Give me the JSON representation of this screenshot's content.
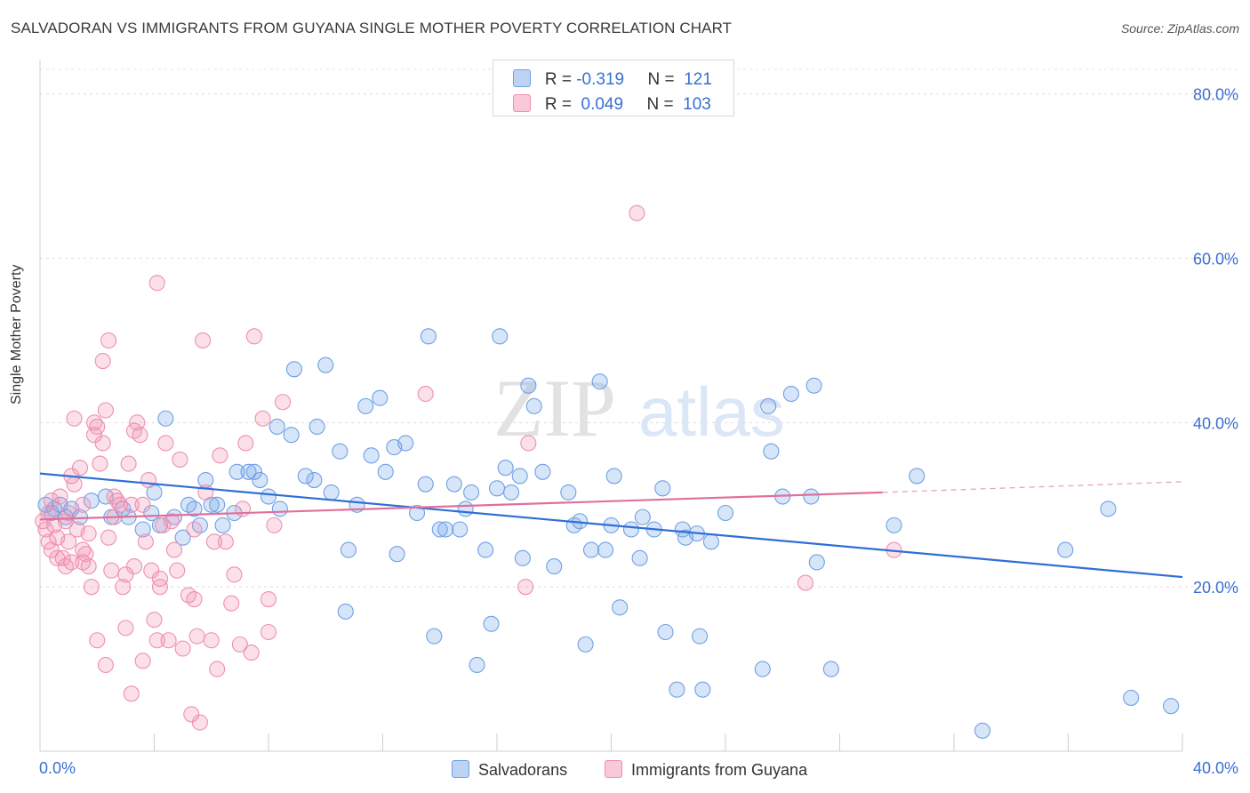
{
  "title": "SALVADORAN VS IMMIGRANTS FROM GUYANA SINGLE MOTHER POVERTY CORRELATION CHART",
  "source": "Source: ZipAtlas.com",
  "watermark": {
    "zip": "ZIP",
    "atlas": "atlas"
  },
  "legend": {
    "rows": [
      {
        "r_label": "R =",
        "r_value": "-0.319",
        "n_label": "N =",
        "n_value": "121",
        "color": "#6fa0e6"
      },
      {
        "r_label": "R =",
        "r_value": "0.049",
        "n_label": "N =",
        "n_value": "103",
        "color": "#ef8fb0"
      }
    ]
  },
  "bottom_legend": [
    {
      "label": "Salvadorans",
      "color": "#6fa0e6"
    },
    {
      "label": "Immigrants from Guyana",
      "color": "#ef8fb0"
    }
  ],
  "chart_data": {
    "type": "scatter",
    "title": "SALVADORAN VS IMMIGRANTS FROM GUYANA SINGLE MOTHER POVERTY CORRELATION CHART",
    "xlabel": "",
    "ylabel": "Single Mother Poverty",
    "xlim": [
      0,
      40
    ],
    "ylim": [
      0,
      83
    ],
    "x_tick_labels": [
      {
        "value": 0,
        "label": "0.0%"
      },
      {
        "value": 40,
        "label": "40.0%"
      }
    ],
    "y_tick_labels": [
      {
        "value": 20,
        "label": "20.0%"
      },
      {
        "value": 40,
        "label": "40.0%"
      },
      {
        "value": 60,
        "label": "60.0%"
      },
      {
        "value": 80,
        "label": "80.0%"
      }
    ],
    "grid": true,
    "legend_position": "top-center",
    "series": [
      {
        "name": "Salvadorans",
        "color": "#6fa0e6",
        "trend": {
          "x": [
            0,
            40
          ],
          "y": [
            33.8,
            21.2
          ],
          "dashed_from": null
        },
        "points": [
          [
            0.2,
            30
          ],
          [
            0.4,
            29
          ],
          [
            0.5,
            29.5
          ],
          [
            0.7,
            30
          ],
          [
            0.9,
            28.5
          ],
          [
            1.1,
            29.5
          ],
          [
            1.4,
            28.5
          ],
          [
            1.8,
            30.5
          ],
          [
            2.3,
            31
          ],
          [
            2.5,
            28.5
          ],
          [
            2.9,
            29.5
          ],
          [
            3.1,
            28.5
          ],
          [
            3.6,
            27
          ],
          [
            3.9,
            29
          ],
          [
            4.0,
            31.5
          ],
          [
            4.2,
            27.5
          ],
          [
            4.4,
            40.5
          ],
          [
            4.7,
            28.5
          ],
          [
            5.0,
            26
          ],
          [
            5.2,
            30
          ],
          [
            5.4,
            29.5
          ],
          [
            5.6,
            27.5
          ],
          [
            5.8,
            33
          ],
          [
            6.0,
            30
          ],
          [
            6.2,
            30
          ],
          [
            6.4,
            27.5
          ],
          [
            6.8,
            29
          ],
          [
            6.9,
            34
          ],
          [
            7.3,
            34
          ],
          [
            7.5,
            34
          ],
          [
            7.7,
            33
          ],
          [
            8.0,
            31
          ],
          [
            8.3,
            39.5
          ],
          [
            8.4,
            29.5
          ],
          [
            8.8,
            38.5
          ],
          [
            8.9,
            46.5
          ],
          [
            9.3,
            33.5
          ],
          [
            9.6,
            33
          ],
          [
            9.7,
            39.5
          ],
          [
            10.0,
            47
          ],
          [
            10.2,
            31.5
          ],
          [
            10.5,
            36.5
          ],
          [
            10.7,
            17
          ],
          [
            10.8,
            24.5
          ],
          [
            11.1,
            30
          ],
          [
            11.4,
            42
          ],
          [
            11.6,
            36
          ],
          [
            11.9,
            43
          ],
          [
            12.1,
            34
          ],
          [
            12.4,
            37
          ],
          [
            12.5,
            24
          ],
          [
            12.8,
            37.5
          ],
          [
            13.2,
            29
          ],
          [
            13.5,
            32.5
          ],
          [
            13.6,
            50.5
          ],
          [
            13.8,
            14
          ],
          [
            14.0,
            27
          ],
          [
            14.2,
            27
          ],
          [
            14.5,
            32.5
          ],
          [
            14.7,
            27
          ],
          [
            14.9,
            29.5
          ],
          [
            15.1,
            31.5
          ],
          [
            15.3,
            10.5
          ],
          [
            15.6,
            24.5
          ],
          [
            15.8,
            15.5
          ],
          [
            16.0,
            32
          ],
          [
            16.1,
            50.5
          ],
          [
            16.3,
            34.5
          ],
          [
            16.5,
            31.5
          ],
          [
            16.8,
            33.5
          ],
          [
            16.9,
            23.5
          ],
          [
            17.1,
            44.5
          ],
          [
            17.3,
            42
          ],
          [
            17.6,
            34
          ],
          [
            18.0,
            22.5
          ],
          [
            18.5,
            31.5
          ],
          [
            18.7,
            27.5
          ],
          [
            18.9,
            28
          ],
          [
            19.1,
            13
          ],
          [
            19.3,
            24.5
          ],
          [
            19.6,
            45
          ],
          [
            19.8,
            24.5
          ],
          [
            20.0,
            27.5
          ],
          [
            20.1,
            33.5
          ],
          [
            20.3,
            17.5
          ],
          [
            20.7,
            27
          ],
          [
            21.0,
            23.5
          ],
          [
            21.1,
            28.5
          ],
          [
            21.5,
            27
          ],
          [
            21.8,
            32
          ],
          [
            21.9,
            14.5
          ],
          [
            22.3,
            7.5
          ],
          [
            22.5,
            27
          ],
          [
            22.6,
            26
          ],
          [
            23.0,
            26.5
          ],
          [
            23.1,
            14
          ],
          [
            23.2,
            7.5
          ],
          [
            23.5,
            25.5
          ],
          [
            24.0,
            29
          ],
          [
            25.3,
            10
          ],
          [
            25.5,
            42
          ],
          [
            25.6,
            36.5
          ],
          [
            26.0,
            31
          ],
          [
            26.3,
            43.5
          ],
          [
            27.0,
            31
          ],
          [
            27.1,
            44.5
          ],
          [
            27.2,
            23
          ],
          [
            27.7,
            10
          ],
          [
            29.9,
            27.5
          ],
          [
            30.7,
            33.5
          ],
          [
            33.0,
            2.5
          ],
          [
            35.9,
            24.5
          ],
          [
            37.4,
            29.5
          ],
          [
            38.2,
            6.5
          ],
          [
            39.6,
            5.5
          ]
        ]
      },
      {
        "name": "Immigrants from Guyana",
        "color": "#ef8fb0",
        "trend": {
          "x": [
            0,
            29.5
          ],
          "y": [
            28.2,
            31.5
          ],
          "dashed_from": 29.5,
          "dashed_to": [
            40,
            32.8
          ]
        },
        "points": [
          [
            0.1,
            28
          ],
          [
            0.2,
            27
          ],
          [
            0.3,
            29
          ],
          [
            0.4,
            30.5
          ],
          [
            0.4,
            24.5
          ],
          [
            0.5,
            27.5
          ],
          [
            0.6,
            26
          ],
          [
            0.7,
            31
          ],
          [
            0.8,
            23.5
          ],
          [
            0.9,
            28
          ],
          [
            1.0,
            29
          ],
          [
            1.0,
            25.5
          ],
          [
            1.1,
            23
          ],
          [
            1.2,
            40.5
          ],
          [
            1.3,
            27
          ],
          [
            1.4,
            34.5
          ],
          [
            1.5,
            30
          ],
          [
            1.5,
            23
          ],
          [
            1.6,
            24
          ],
          [
            1.7,
            22.5
          ],
          [
            1.8,
            20
          ],
          [
            1.9,
            38.5
          ],
          [
            1.9,
            40
          ],
          [
            2.0,
            39.5
          ],
          [
            2.1,
            35
          ],
          [
            2.2,
            37.5
          ],
          [
            2.3,
            41.5
          ],
          [
            2.4,
            26
          ],
          [
            2.5,
            22
          ],
          [
            2.6,
            31
          ],
          [
            2.7,
            30.5
          ],
          [
            2.9,
            20
          ],
          [
            3.0,
            21.5
          ],
          [
            3.1,
            35
          ],
          [
            3.2,
            30
          ],
          [
            3.3,
            39
          ],
          [
            3.4,
            40
          ],
          [
            3.5,
            38.5
          ],
          [
            3.6,
            30
          ],
          [
            3.7,
            25.5
          ],
          [
            3.8,
            33
          ],
          [
            3.9,
            22
          ],
          [
            4.0,
            16
          ],
          [
            4.1,
            13.5
          ],
          [
            4.2,
            20
          ],
          [
            4.3,
            27.5
          ],
          [
            4.4,
            37.5
          ],
          [
            4.5,
            13.5
          ],
          [
            4.6,
            28
          ],
          [
            4.7,
            24.5
          ],
          [
            4.8,
            22
          ],
          [
            4.9,
            35.5
          ],
          [
            5.0,
            12.5
          ],
          [
            5.2,
            19
          ],
          [
            5.3,
            4.5
          ],
          [
            5.4,
            27
          ],
          [
            5.5,
            14
          ],
          [
            5.6,
            3.5
          ],
          [
            5.7,
            50
          ],
          [
            5.8,
            31.5
          ],
          [
            6.0,
            13.5
          ],
          [
            6.2,
            10
          ],
          [
            6.3,
            36
          ],
          [
            6.5,
            25.5
          ],
          [
            6.7,
            18
          ],
          [
            6.8,
            21.5
          ],
          [
            7.0,
            13
          ],
          [
            7.1,
            29.5
          ],
          [
            7.2,
            37.5
          ],
          [
            7.5,
            50.5
          ],
          [
            7.8,
            40.5
          ],
          [
            8.0,
            14.5
          ],
          [
            8.2,
            27.5
          ],
          [
            8.5,
            42.5
          ],
          [
            2.0,
            13.5
          ],
          [
            2.2,
            47.5
          ],
          [
            2.4,
            50
          ],
          [
            3.2,
            7
          ],
          [
            4.1,
            57
          ],
          [
            2.3,
            10.5
          ],
          [
            0.6,
            23.5
          ],
          [
            0.9,
            22.5
          ],
          [
            1.1,
            33.5
          ],
          [
            1.5,
            24.5
          ],
          [
            2.6,
            28.5
          ],
          [
            3.0,
            15
          ],
          [
            3.6,
            11
          ],
          [
            4.2,
            21
          ],
          [
            5.4,
            18.5
          ],
          [
            6.1,
            25.5
          ],
          [
            7.4,
            12
          ],
          [
            8.0,
            18.5
          ],
          [
            1.2,
            32.5
          ],
          [
            2.8,
            30
          ],
          [
            3.3,
            22.5
          ],
          [
            17.0,
            20
          ],
          [
            17.1,
            37.5
          ],
          [
            13.5,
            43.5
          ],
          [
            20.9,
            65.5
          ],
          [
            26.8,
            20.5
          ],
          [
            29.9,
            24.5
          ],
          [
            0.3,
            25.5
          ],
          [
            1.7,
            26.5
          ]
        ]
      }
    ]
  }
}
